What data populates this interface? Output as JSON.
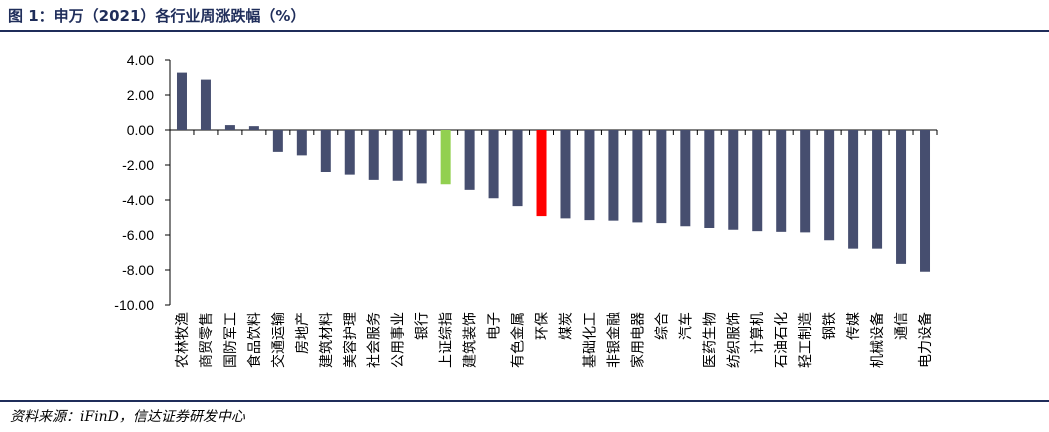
{
  "header": {
    "title": "图  1：申万（2021）各行业周涨跌幅（%）"
  },
  "footer": {
    "source": "资料来源：iFinD，信达证券研发中心"
  },
  "colors": {
    "default_bar": "#464e6f",
    "highlight_green": "#92d050",
    "highlight_red": "#ff0000",
    "axis": "#000000",
    "brand": "#1f2d5a"
  },
  "chart_data": {
    "type": "bar",
    "title": "申万（2021）各行业周涨跌幅（%）",
    "xlabel": "",
    "ylabel": "",
    "ylim": [
      -10,
      4
    ],
    "yticks": [
      "4.00",
      "2.00",
      "0.00",
      "-2.00",
      "-4.00",
      "-6.00",
      "-8.00",
      "-10.00"
    ],
    "grid": false,
    "legend": "none",
    "categories": [
      "农林牧渔",
      "商贸零售",
      "国防军工",
      "食品饮料",
      "交通运输",
      "房地产",
      "建筑材料",
      "美容护理",
      "社会服务",
      "公用事业",
      "银行",
      "上证综指",
      "建筑装饰",
      "电子",
      "有色金属",
      "环保",
      "煤炭",
      "基础化工",
      "非银金融",
      "家用电器",
      "综合",
      "汽车",
      "医药生物",
      "纺织服饰",
      "计算机",
      "石油石化",
      "轻工制造",
      "钢铁",
      "传媒",
      "机械设备",
      "通信",
      "电力设备"
    ],
    "values": [
      3.28,
      2.88,
      0.28,
      0.22,
      -1.25,
      -1.45,
      -2.4,
      -2.55,
      -2.85,
      -2.9,
      -3.05,
      -3.1,
      -3.42,
      -3.9,
      -4.35,
      -4.92,
      -5.05,
      -5.15,
      -5.18,
      -5.28,
      -5.32,
      -5.5,
      -5.6,
      -5.7,
      -5.78,
      -5.82,
      -5.85,
      -6.3,
      -6.78,
      -6.78,
      -7.65,
      -8.1
    ],
    "highlights": {
      "上证综指": "green",
      "环保": "red"
    }
  }
}
